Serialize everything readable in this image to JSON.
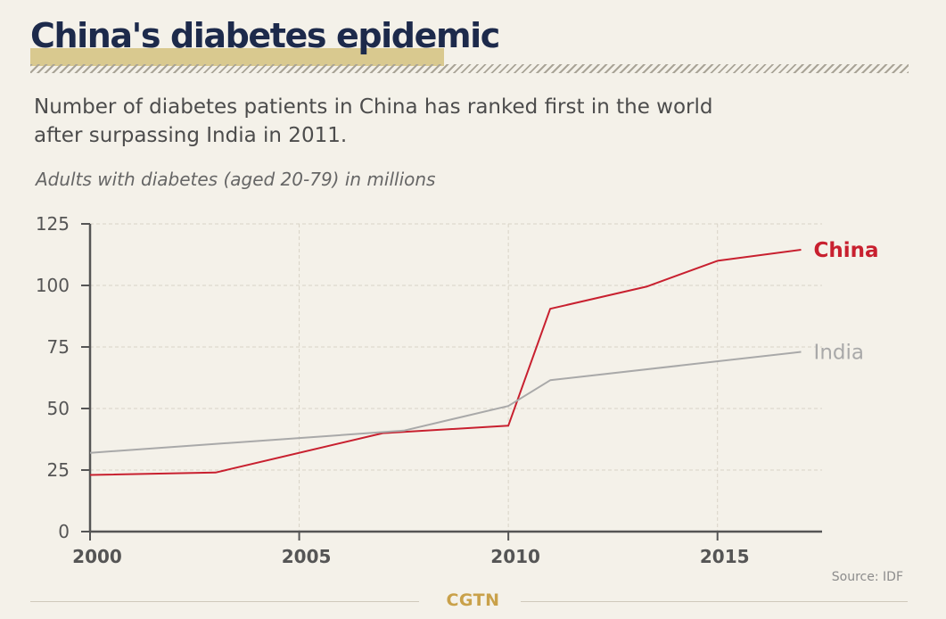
{
  "header": {
    "title": "China's diabetes epidemic",
    "subtitle": "Number of diabetes patients in China has ranked first in the world after surpassing India in 2011."
  },
  "chart_data": {
    "type": "line",
    "unit_label": "Adults with diabetes (aged 20-79) in millions",
    "xlim": [
      2000,
      2017.5
    ],
    "ylim": [
      0,
      125
    ],
    "x_ticks": [
      "2000",
      "2005",
      "2010",
      "2015"
    ],
    "y_ticks": [
      "0",
      "25",
      "50",
      "75",
      "100",
      "125"
    ],
    "grid": true,
    "series": [
      {
        "name": "China",
        "color": "#c8202f",
        "points": [
          [
            2000,
            23
          ],
          [
            2003,
            24
          ],
          [
            2007,
            40
          ],
          [
            2010,
            43
          ],
          [
            2011,
            90.5
          ],
          [
            2013.3,
            99.5
          ],
          [
            2015,
            110
          ],
          [
            2017,
            114.5
          ]
        ]
      },
      {
        "name": "India",
        "color": "#a9a9a9",
        "points": [
          [
            2000,
            32
          ],
          [
            2007.5,
            41
          ],
          [
            2010,
            51
          ],
          [
            2011,
            61.5
          ],
          [
            2017,
            73
          ]
        ]
      }
    ]
  },
  "footer": {
    "source": "Source: IDF",
    "brand": "CGTN"
  },
  "colors": {
    "background": "#f4f1e9",
    "title": "#1d2a4b",
    "title_highlight": "#d9c98f",
    "china": "#c8202f",
    "india": "#a9a9a9",
    "brand": "#c9a14a"
  }
}
